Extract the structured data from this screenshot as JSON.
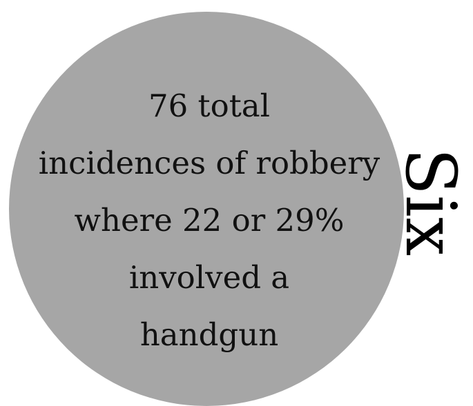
{
  "circle": {
    "fill_color": "#a6a6a6",
    "text": "76 total\nincidences of robbery\nwhere 22 or 29%\ninvolved a\nhandgun"
  },
  "side_label": "Six"
}
